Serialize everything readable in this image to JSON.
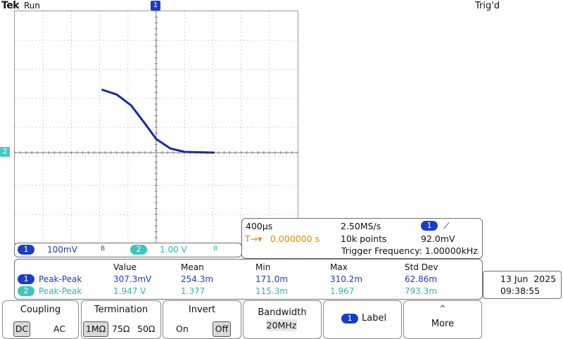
{
  "header": {
    "brand": "Tek",
    "state": "Run",
    "trigger_status": "Trig'd"
  },
  "markers": {
    "trigger_position": "1",
    "ch2_ground": "2"
  },
  "channels": [
    {
      "badge": "1",
      "scale": "100mV",
      "bw": "B",
      "color": "#1a3cc8"
    },
    {
      "badge": "2",
      "scale": "1.00 V",
      "bw": "B",
      "color": "#3cc4c4"
    }
  ],
  "horizontal": {
    "timebase": "400µs",
    "sample_rate": "2.50MS/s",
    "trigger_channel": "1",
    "slope": "⟋",
    "trigger_delay": "0.000000 s",
    "record_length": "10k points",
    "trigger_level": "92.0mV",
    "trigger_frequency": "Trigger Frequency: 1.00000kHz",
    "trigger_icon": "T→▾"
  },
  "measurements": {
    "headers": [
      "Value",
      "Mean",
      "Min",
      "Max",
      "Std Dev"
    ],
    "rows": [
      {
        "ch": "1",
        "name": "Peak-Peak",
        "value": "307.3mV",
        "mean": "254.3m",
        "min": "171.0m",
        "max": "310.2m",
        "std": "62.86m"
      },
      {
        "ch": "2",
        "name": "Peak-Peak",
        "value": "1.947 V",
        "mean": "1.377",
        "min": "115.3m",
        "max": "1.967",
        "std": "793.3m"
      }
    ]
  },
  "datetime": {
    "date": "13 Jun  2025",
    "time": "09:38:55"
  },
  "menu": {
    "coupling": {
      "title": "Coupling",
      "options": [
        "DC",
        "AC"
      ],
      "selected": "DC"
    },
    "termination": {
      "title": "Termination",
      "options": [
        "1MΩ",
        "75Ω",
        "50Ω"
      ],
      "selected": "1MΩ"
    },
    "invert": {
      "title": "Invert",
      "options": [
        "On",
        "Off"
      ],
      "selected": "Off"
    },
    "bandwidth": {
      "title": "Bandwidth",
      "value": "20MHz"
    },
    "label": {
      "badge": "1",
      "text": "Label"
    },
    "more": {
      "text": "More",
      "icon": "up-caret-icon"
    }
  },
  "trace": {
    "color": "#1a2aa0",
    "shape": "XY sigmoid decreasing",
    "x": [
      -0.75,
      -0.55,
      -0.35,
      -0.15,
      0.0,
      0.2,
      0.4,
      0.8
    ],
    "y": [
      0.93,
      0.86,
      0.7,
      0.42,
      0.2,
      0.06,
      0.01,
      0.0
    ]
  }
}
